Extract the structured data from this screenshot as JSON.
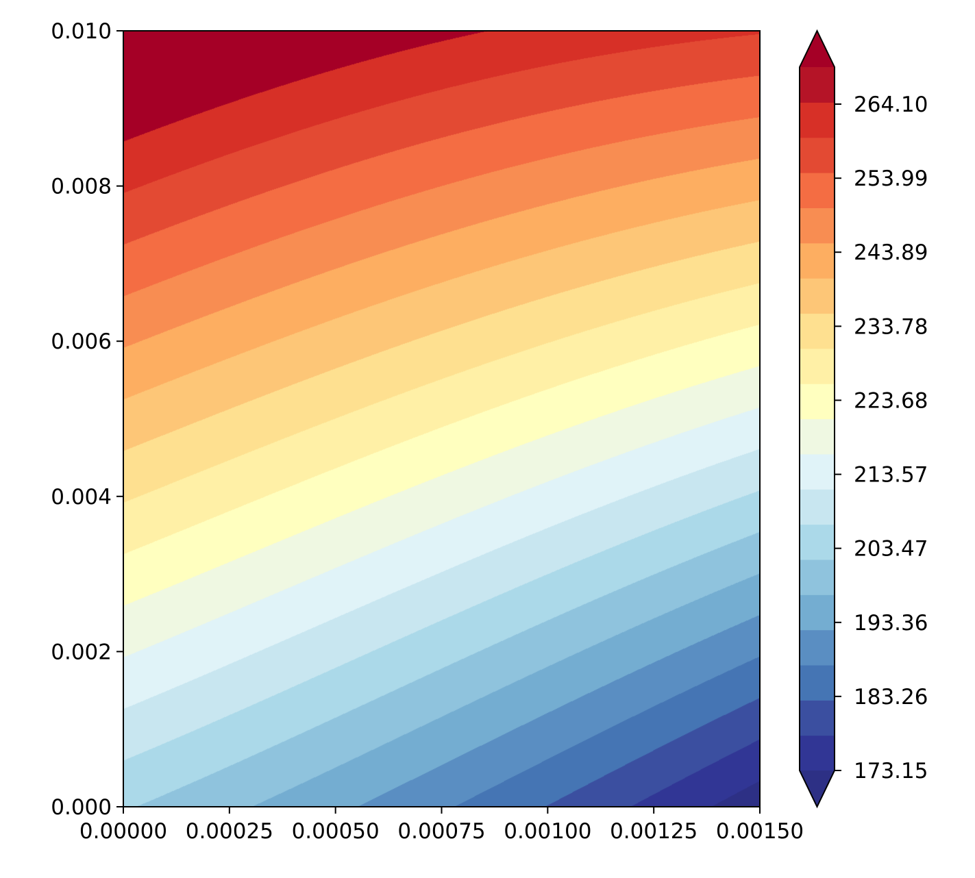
{
  "chart_data": {
    "type": "heatmap",
    "subtype": "filled-contour",
    "title": "",
    "xlabel": "",
    "ylabel": "",
    "xlim": [
      0.0,
      0.0015
    ],
    "ylim": [
      0.0,
      0.01
    ],
    "x_ticks": [
      "0.00000",
      "0.00025",
      "0.00050",
      "0.00075",
      "0.00100",
      "0.00125",
      "0.00150"
    ],
    "y_ticks": [
      "0.000",
      "0.002",
      "0.004",
      "0.006",
      "0.008",
      "0.010"
    ],
    "colormap": "RdYlBu_r",
    "colorbar": {
      "extend": "both",
      "vmin": 173.15,
      "vmax": 269.15,
      "levels": [
        173.15,
        178.2,
        183.26,
        188.31,
        193.36,
        198.42,
        203.47,
        208.52,
        213.57,
        218.63,
        223.68,
        228.73,
        233.78,
        238.84,
        243.89,
        248.94,
        253.99,
        259.05,
        264.1,
        269.15
      ],
      "tick_labels": [
        "173.15",
        "183.26",
        "193.36",
        "203.47",
        "213.57",
        "223.68",
        "233.78",
        "243.89",
        "253.99",
        "264.10"
      ],
      "band_colors": [
        "#313695",
        "#3b4fa0",
        "#4575b4",
        "#5a8ec2",
        "#74add1",
        "#8fc3dd",
        "#abd9e9",
        "#c8e6f0",
        "#e0f3f8",
        "#eff8e2",
        "#ffffbf",
        "#fff0a6",
        "#fee090",
        "#fdc677",
        "#fdae61",
        "#f88d52",
        "#f46d43",
        "#e34a33",
        "#d73027",
        "#b51427"
      ],
      "under_color": "#2d3085",
      "over_color": "#a50026"
    },
    "field": {
      "description_value_at_corners": {
        "x0_y0": 204.0,
        "x0_y1": 280.0,
        "x1_y0": 170.0,
        "x1_y1": 264.5
      }
    }
  }
}
